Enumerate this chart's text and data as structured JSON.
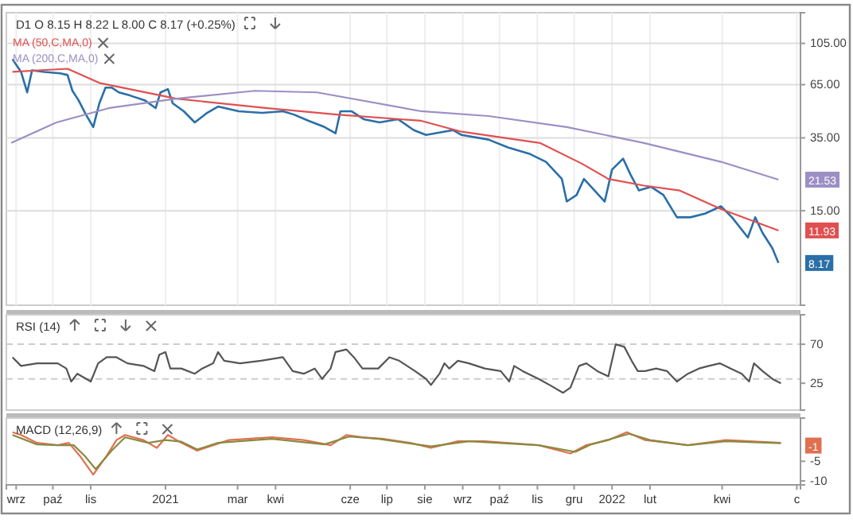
{
  "chart_data": [
    {
      "type": "line",
      "title": "D1 O 8.15 H 8.22 L 8.00 C 8.17 (+0.25%)",
      "log": "y",
      "grid": true,
      "legend": "top left",
      "tick_labels": "y",
      "xlim": [
        "2020-08-24",
        "2022-06-04"
      ],
      "xticks": [
        {
          "value": "2020-09-01",
          "label": null
        },
        {
          "value": "2020-10-01",
          "label": null
        },
        {
          "value": "2020-11-01",
          "label": null
        },
        {
          "value": "2021-01-01",
          "label": null
        },
        {
          "value": "2021-03-01",
          "label": null
        },
        {
          "value": "2021-04-01",
          "label": null
        },
        {
          "value": "2021-06-01",
          "label": null
        },
        {
          "value": "2021-07-01",
          "label": null
        },
        {
          "value": "2021-08-01",
          "label": null
        },
        {
          "value": "2021-09-01",
          "label": null
        },
        {
          "value": "2021-10-01",
          "label": null
        },
        {
          "value": "2021-11-01",
          "label": null
        },
        {
          "value": "2021-12-01",
          "label": null
        },
        {
          "value": "2022-01-01",
          "label": null
        },
        {
          "value": "2022-02-01",
          "label": null
        },
        {
          "value": "2022-04-01",
          "label": null
        },
        {
          "value": "2022-06-01",
          "label": null
        }
      ],
      "ylim": [
        5,
        150
      ],
      "yticks": [
        {
          "value": 15,
          "label": "15.00"
        },
        {
          "value": 35,
          "label": "35.00"
        },
        {
          "value": 65,
          "label": "65.00"
        },
        {
          "value": 105,
          "label": "105.00"
        }
      ],
      "series": [
        {
          "color": "#2a6fa8",
          "x": [
            "2020-08-29",
            "2020-09-05",
            "2020-09-10",
            "2020-09-14",
            "2020-09-24",
            "2020-10-07",
            "2020-10-13",
            "2020-10-17",
            "2020-10-22",
            "2020-10-28",
            "2020-11-03",
            "2020-11-08",
            "2020-11-13",
            "2020-11-18",
            "2020-11-24",
            "2020-12-03",
            "2020-12-15",
            "2020-12-24",
            "2020-12-28",
            "2021-01-03",
            "2021-01-07",
            "2021-01-16",
            "2021-01-25",
            "2021-02-04",
            "2021-02-13",
            "2021-03-02",
            "2021-03-21",
            "2021-04-07",
            "2021-04-16",
            "2021-04-28",
            "2021-05-11",
            "2021-05-20",
            "2021-05-24",
            "2021-06-02",
            "2021-06-12",
            "2021-06-25",
            "2021-07-10",
            "2021-07-23",
            "2021-08-02",
            "2021-08-24",
            "2021-08-31",
            "2021-09-22",
            "2021-10-08",
            "2021-10-26",
            "2021-11-08",
            "2021-11-21",
            "2021-11-25",
            "2021-12-03",
            "2021-12-09",
            "2021-12-15",
            "2021-12-26",
            "2022-01-01",
            "2022-01-10",
            "2022-01-16",
            "2022-01-23",
            "2022-02-02",
            "2022-02-12",
            "2022-02-23",
            "2022-03-06",
            "2022-03-18",
            "2022-03-31",
            "2022-04-09",
            "2022-04-22",
            "2022-04-28",
            "2022-05-04",
            "2022-05-12",
            "2022-05-17"
          ],
          "values": [
            87.3,
            75.4,
            59.4,
            76.8,
            75.4,
            74.1,
            72.7,
            60.5,
            54.2,
            45.9,
            39.7,
            52.3,
            62.8,
            62.8,
            59.4,
            57.3,
            54.2,
            49.5,
            59.4,
            61.7,
            52.3,
            47.7,
            41.9,
            46.8,
            50.4,
            47.7,
            46.8,
            47.7,
            45.9,
            42.7,
            39.7,
            36.9,
            47.7,
            47.7,
            43.5,
            41.9,
            43.5,
            38.3,
            36.2,
            38.3,
            36.2,
            34.3,
            31.3,
            29.0,
            26.5,
            21.7,
            16.7,
            18.0,
            21.7,
            19.8,
            16.7,
            24.2,
            27.5,
            22.9,
            19.0,
            19.8,
            18.0,
            13.9,
            13.9,
            14.5,
            15.8,
            13.9,
            11.0,
            13.9,
            11.6,
            9.7,
            8.17
          ]
        },
        {
          "name": "MA (50,C,MA,0)",
          "color": "#e05050",
          "x": [
            "2020-08-29",
            "2020-10-13",
            "2020-11-08",
            "2021-01-10",
            "2021-03-24",
            "2021-05-21",
            "2021-07-29",
            "2021-08-31",
            "2021-11-03",
            "2021-12-07",
            "2021-12-29",
            "2022-01-27",
            "2022-02-25",
            "2022-03-31",
            "2022-05-17"
          ],
          "values": [
            75.4,
            78.2,
            66.3,
            55.2,
            49.5,
            45.9,
            42.7,
            37.6,
            33.0,
            26.0,
            21.7,
            20.1,
            19.0,
            15.3,
            11.93
          ]
        },
        {
          "name": "MA (200,C,MA,0)",
          "color": "#9c8fc4",
          "x": [
            "2020-08-28",
            "2020-10-04",
            "2020-11-16",
            "2021-01-10",
            "2021-03-15",
            "2021-05-05",
            "2021-07-29",
            "2021-09-22",
            "2021-11-25",
            "2022-01-27",
            "2022-03-31",
            "2022-05-17"
          ],
          "values": [
            33.0,
            41.9,
            49.5,
            55.2,
            60.5,
            59.4,
            47.7,
            45.1,
            39.7,
            33.0,
            26.5,
            21.53
          ]
        }
      ],
      "annotations": [
        {
          "text": "8.17",
          "x": "2022-05-17",
          "y": 8.17
        },
        {
          "text": "11.93",
          "x": "2022-05-17",
          "y": 11.93
        },
        {
          "text": "21.53",
          "x": "2022-05-17",
          "y": 21.53
        }
      ]
    },
    {
      "type": "line",
      "title": "RSI (14)",
      "tick_labels": "y",
      "xlim": [
        "2020-08-24",
        "2022-06-04"
      ],
      "ylim": [
        -6,
        104
      ],
      "yticks": [
        {
          "value": 25,
          "label": "25"
        },
        70
      ],
      "ref_lines": [
        {
          "axis": "y",
          "value": 30,
          "line_style": "dashed"
        },
        {
          "axis": "y",
          "value": 70,
          "line_style": "dashed"
        }
      ],
      "series": [
        {
          "color": "#555555",
          "x": [
            "2020-08-29",
            "2020-09-05",
            "2020-09-18",
            "2020-10-05",
            "2020-10-12",
            "2020-10-16",
            "2020-10-21",
            "2020-11-01",
            "2020-11-07",
            "2020-11-14",
            "2020-11-22",
            "2020-12-01",
            "2020-12-14",
            "2020-12-23",
            "2020-12-27",
            "2021-01-01",
            "2021-01-05",
            "2021-01-14",
            "2021-01-25",
            "2021-01-31",
            "2021-02-09",
            "2021-02-13",
            "2021-02-18",
            "2021-03-03",
            "2021-03-20",
            "2021-04-07",
            "2021-04-15",
            "2021-04-24",
            "2021-05-03",
            "2021-05-09",
            "2021-05-16",
            "2021-05-20",
            "2021-05-29",
            "2021-06-04",
            "2021-06-11",
            "2021-06-24",
            "2021-07-03",
            "2021-07-11",
            "2021-07-24",
            "2021-08-02",
            "2021-08-06",
            "2021-08-13",
            "2021-08-17",
            "2021-08-21",
            "2021-08-28",
            "2021-09-06",
            "2021-09-19",
            "2021-10-02",
            "2021-10-09",
            "2021-10-13",
            "2021-10-20",
            "2021-11-02",
            "2021-11-11",
            "2021-11-22",
            "2021-11-28",
            "2021-12-05",
            "2021-12-11",
            "2021-12-20",
            "2021-12-29",
            "2022-01-04",
            "2022-01-11",
            "2022-01-17",
            "2022-01-22",
            "2022-01-28",
            "2022-02-06",
            "2022-02-15",
            "2022-02-23",
            "2022-03-04",
            "2022-03-13",
            "2022-03-21",
            "2022-03-30",
            "2022-04-08",
            "2022-04-17",
            "2022-04-23",
            "2022-04-27",
            "2022-05-04",
            "2022-05-12",
            "2022-05-19"
          ],
          "values": [
            55,
            45,
            48,
            48,
            42,
            27,
            36,
            27,
            48,
            55,
            55,
            48,
            45,
            39,
            58,
            61,
            42,
            42,
            36,
            42,
            48,
            61,
            51,
            48,
            51,
            55,
            39,
            36,
            42,
            30,
            42,
            61,
            64,
            55,
            42,
            42,
            55,
            51,
            39,
            30,
            23,
            36,
            48,
            42,
            51,
            48,
            42,
            39,
            27,
            45,
            39,
            30,
            23,
            14,
            20,
            45,
            48,
            39,
            33,
            70,
            67,
            51,
            39,
            39,
            42,
            39,
            27,
            36,
            42,
            45,
            48,
            42,
            36,
            27,
            48,
            39,
            30,
            25
          ]
        }
      ]
    },
    {
      "type": "line",
      "title": "MACD (12,26,9)",
      "xlim": [
        "2020-08-24",
        "2022-06-04"
      ],
      "xticks": [
        {
          "value": "2020-09-01",
          "label": "wrz"
        },
        {
          "value": "2020-10-01",
          "label": "paź"
        },
        {
          "value": "2020-11-01",
          "label": "lis"
        },
        {
          "value": "2021-01-01",
          "label": "2021"
        },
        {
          "value": "2021-03-01",
          "label": "mar"
        },
        {
          "value": "2021-04-01",
          "label": "kwi"
        },
        {
          "value": "2021-06-01",
          "label": "cze"
        },
        {
          "value": "2021-07-01",
          "label": "lip"
        },
        {
          "value": "2021-08-01",
          "label": "sie"
        },
        {
          "value": "2021-09-01",
          "label": "wrz"
        },
        {
          "value": "2021-10-01",
          "label": "paź"
        },
        {
          "value": "2021-11-01",
          "label": "lis"
        },
        {
          "value": "2021-12-01",
          "label": "gru"
        },
        {
          "value": "2022-01-01",
          "label": "2022"
        },
        {
          "value": "2022-02-01",
          "label": "lut"
        },
        {
          "value": "2022-04-01",
          "label": "kwi"
        },
        {
          "value": "2022-06-01",
          "label": "c"
        }
      ],
      "ylim": [
        -11,
        6
      ],
      "yticks": [
        -10,
        -5
      ],
      "series": [
        {
          "color": "#e07050",
          "x": [
            "2020-08-29",
            "2020-09-05",
            "2020-09-18",
            "2020-10-05",
            "2020-10-14",
            "2020-10-23",
            "2020-11-03",
            "2020-11-14",
            "2020-11-22",
            "2020-11-29",
            "2020-12-14",
            "2020-12-25",
            "2021-01-03",
            "2021-01-14",
            "2021-01-27",
            "2021-02-09",
            "2021-02-22",
            "2021-03-29",
            "2021-04-24",
            "2021-05-16",
            "2021-05-29",
            "2021-06-11",
            "2021-06-28",
            "2021-07-20",
            "2021-08-06",
            "2021-08-28",
            "2021-09-19",
            "2021-11-02",
            "2021-11-28",
            "2021-12-11",
            "2021-12-29",
            "2022-01-13",
            "2022-01-28",
            "2022-03-04",
            "2022-04-04",
            "2022-05-19"
          ],
          "values": [
            2.4,
            1.7,
            -0.3,
            -0.9,
            -0.3,
            -3.6,
            -8.4,
            -3.6,
            0.4,
            1.7,
            0.4,
            -1.6,
            1.7,
            -0.3,
            -2.3,
            -0.9,
            0.4,
            1.1,
            0.4,
            -0.9,
            1.7,
            1.1,
            0.7,
            -0.3,
            -1.6,
            0.1,
            0.1,
            -0.9,
            -3.0,
            -0.9,
            0.4,
            2.4,
            0.4,
            -0.9,
            0.4,
            -0.3
          ]
        },
        {
          "color": "#8a8a40",
          "x": [
            "2020-08-29",
            "2020-09-18",
            "2020-10-05",
            "2020-10-18",
            "2020-10-27",
            "2020-11-05",
            "2020-11-18",
            "2020-11-29",
            "2020-12-18",
            "2021-01-01",
            "2021-01-14",
            "2021-01-27",
            "2021-02-13",
            "2021-03-29",
            "2021-05-11",
            "2021-05-31",
            "2021-06-24",
            "2021-08-06",
            "2021-09-06",
            "2021-11-02",
            "2021-12-02",
            "2021-12-15",
            "2022-01-15",
            "2022-02-01",
            "2022-03-04",
            "2022-04-04",
            "2022-05-19"
          ],
          "values": [
            1.7,
            -0.7,
            -0.9,
            -0.9,
            -3.6,
            -7.0,
            -2.3,
            1.1,
            -0.3,
            0.4,
            0.0,
            -2.0,
            -0.3,
            0.7,
            -0.7,
            1.3,
            0.7,
            -1.2,
            0.1,
            -0.9,
            -2.6,
            -0.7,
            2.0,
            0.4,
            -0.9,
            0.1,
            -0.4
          ]
        }
      ],
      "annotations": [
        {
          "text": "-1",
          "x": "2022-05-19",
          "y": -1
        }
      ]
    }
  ]
}
